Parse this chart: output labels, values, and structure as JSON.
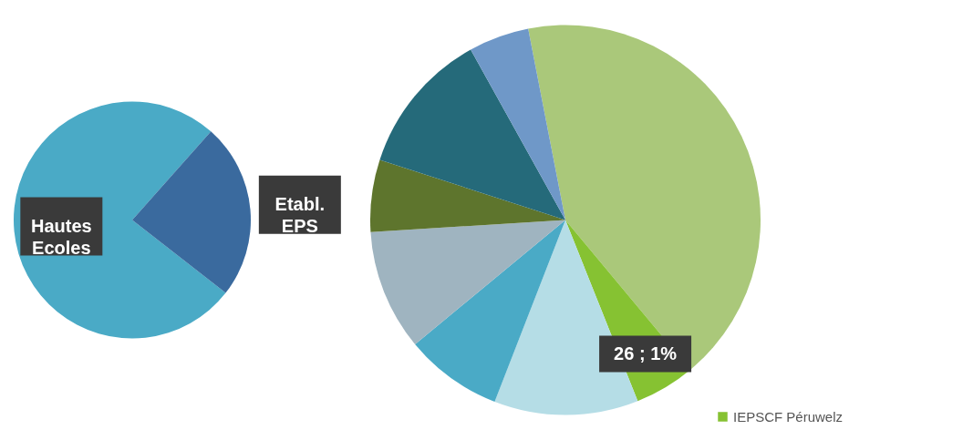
{
  "chart_data": [
    {
      "type": "pie",
      "categories": [
        "Hautes Ecoles",
        "Etabl. EPS"
      ],
      "values": [
        76,
        24
      ],
      "colors": [
        "#4aaac6",
        "#3a6a9e"
      ],
      "legend": false
    },
    {
      "type": "pie",
      "categories": [
        null,
        "IEPSCF Péruwelz",
        null,
        null,
        null,
        null,
        null,
        null
      ],
      "values": [
        218,
        26,
        62,
        42,
        52,
        31,
        62,
        26
      ],
      "colors": [
        "#aac87a",
        "#86c232",
        "#b5dde6",
        "#4aaac6",
        "#9fb4c0",
        "#5e752d",
        "#256a7a",
        "#6f98c8"
      ],
      "value_labels": [
        null,
        "26 ; 1%",
        null,
        null,
        null,
        null,
        null,
        null
      ],
      "legend": "bottom right"
    }
  ]
}
